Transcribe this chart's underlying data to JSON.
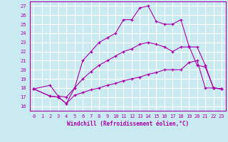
{
  "background_color": "#c8eaf0",
  "grid_color": "#ffffff",
  "line_color": "#aa00aa",
  "xlabel": "Windchill (Refroidissement éolien,°C)",
  "xlim": [
    -0.5,
    23.5
  ],
  "ylim": [
    15.5,
    27.5
  ],
  "yticks": [
    16,
    17,
    18,
    19,
    20,
    21,
    22,
    23,
    24,
    25,
    26,
    27
  ],
  "xticks": [
    0,
    1,
    2,
    3,
    4,
    5,
    6,
    7,
    8,
    9,
    10,
    11,
    12,
    13,
    14,
    15,
    16,
    17,
    18,
    19,
    20,
    21,
    22,
    23
  ],
  "line1_x": [
    0,
    2,
    3,
    4,
    5,
    6,
    7,
    8,
    9,
    10,
    11,
    12,
    13,
    14,
    15,
    16,
    17,
    18,
    19,
    20,
    21,
    22,
    23
  ],
  "line1_y": [
    17.9,
    18.3,
    17.1,
    17.0,
    18.0,
    21.0,
    22.0,
    23.0,
    23.5,
    24.0,
    25.5,
    25.5,
    26.8,
    27.0,
    25.3,
    25.0,
    25.0,
    25.5,
    22.6,
    20.5,
    20.3,
    18.0,
    17.9
  ],
  "line2_x": [
    0,
    2,
    3,
    4,
    5,
    6,
    7,
    8,
    9,
    10,
    11,
    12,
    13,
    14,
    15,
    16,
    17,
    18,
    19,
    20,
    21,
    22,
    23
  ],
  "line2_y": [
    17.9,
    17.1,
    17.0,
    16.3,
    18.0,
    19.0,
    19.8,
    20.5,
    21.0,
    21.5,
    22.0,
    22.3,
    22.8,
    23.0,
    22.8,
    22.5,
    22.0,
    22.5,
    22.5,
    22.5,
    20.5,
    18.0,
    17.9
  ],
  "line3_x": [
    0,
    2,
    3,
    4,
    5,
    6,
    7,
    8,
    9,
    10,
    11,
    12,
    13,
    14,
    15,
    16,
    17,
    18,
    19,
    20,
    21,
    22,
    23
  ],
  "line3_y": [
    17.9,
    17.1,
    17.0,
    16.3,
    17.2,
    17.5,
    17.8,
    18.0,
    18.3,
    18.5,
    18.8,
    19.0,
    19.2,
    19.5,
    19.7,
    20.0,
    20.0,
    20.0,
    20.8,
    21.0,
    18.0,
    18.0,
    17.9
  ]
}
